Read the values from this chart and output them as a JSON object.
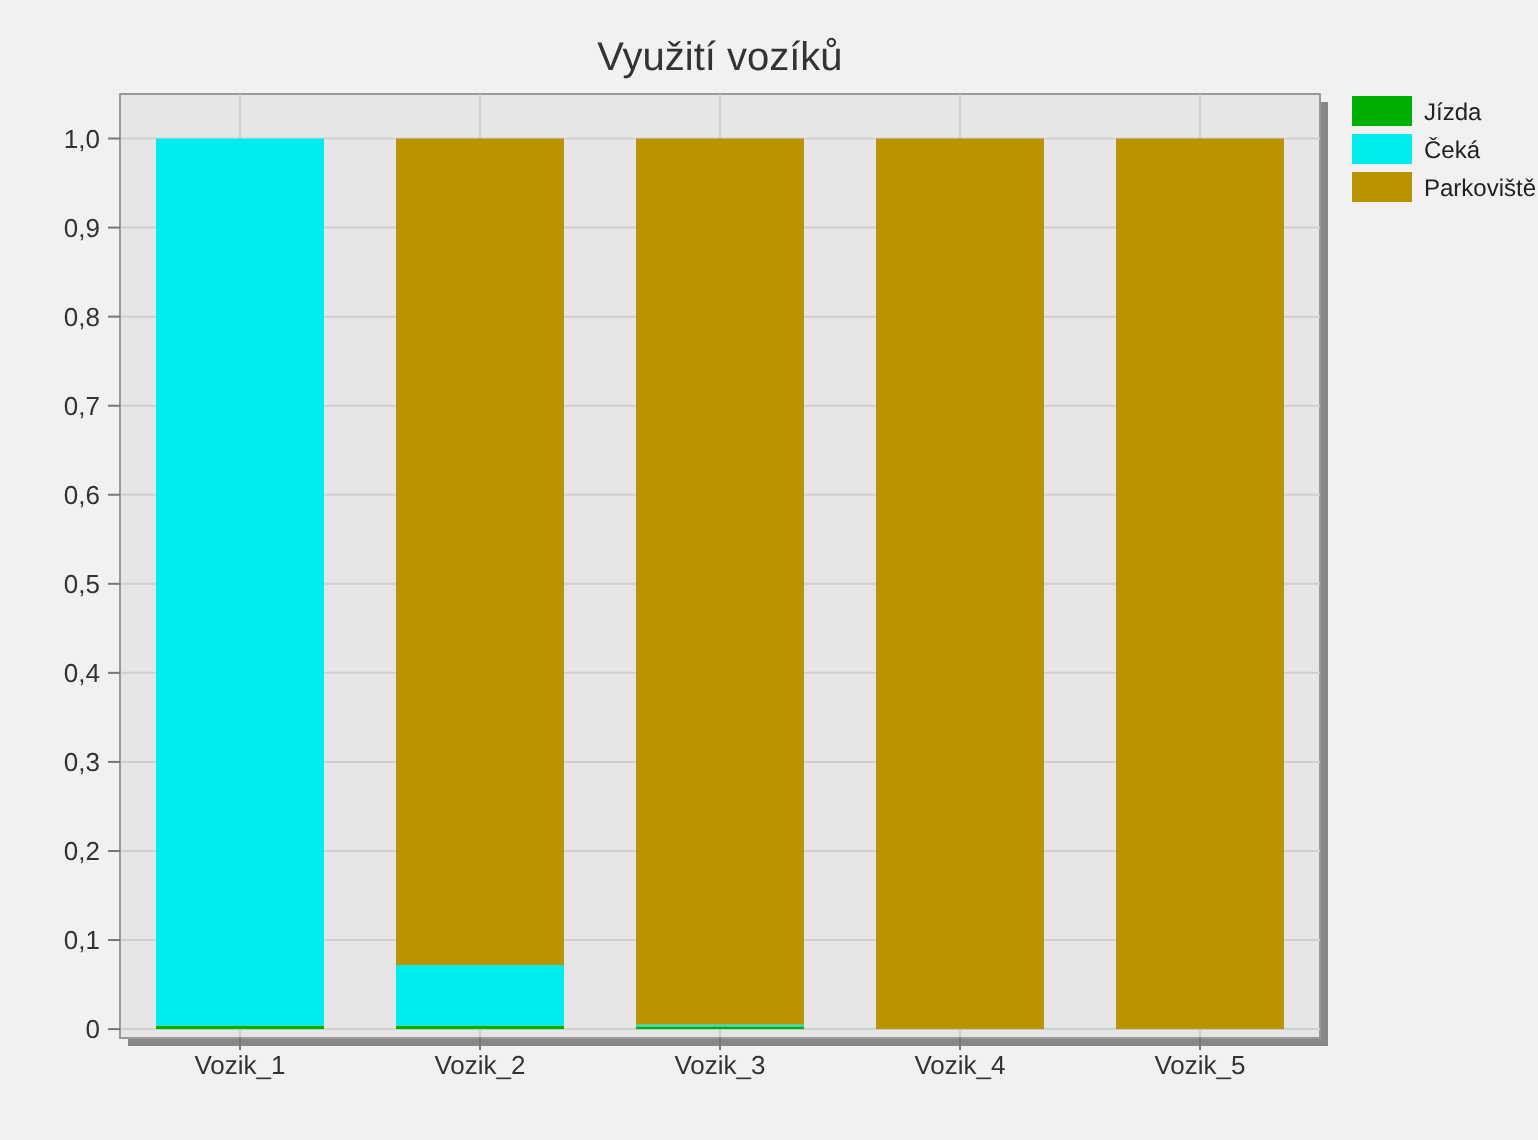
{
  "chart_data": {
    "type": "bar",
    "title": "Využití vozíků",
    "categories": [
      "Vozik_1",
      "Vozik_2",
      "Vozik_3",
      "Vozik_4",
      "Vozik_5"
    ],
    "stacked": true,
    "series": [
      {
        "name": "Jízda",
        "color": "#00b000",
        "values": [
          0.004,
          0.004,
          0.003,
          0,
          0
        ]
      },
      {
        "name": "Čeká",
        "color": "#00eded",
        "values": [
          0.996,
          0.068,
          0.002,
          0,
          0
        ]
      },
      {
        "name": "Parkoviště",
        "color": "#b99400",
        "values": [
          0,
          0.928,
          0.995,
          1,
          1
        ]
      }
    ],
    "ylim": [
      -0.01,
      1.05
    ],
    "yticks": [
      0,
      {
        "value": 0.1,
        "label": "0,1"
      },
      {
        "value": 0.2,
        "label": "0,2"
      },
      {
        "value": 0.3,
        "label": "0,3"
      },
      {
        "value": 0.4,
        "label": "0,4"
      },
      {
        "value": 0.5,
        "label": "0,5"
      },
      {
        "value": 0.6,
        "label": "0,6"
      },
      {
        "value": 0.7,
        "label": "0,7"
      },
      {
        "value": 0.8,
        "label": "0,8"
      },
      {
        "value": 0.9,
        "label": "0,9"
      },
      {
        "value": 1,
        "label": "1,0"
      }
    ],
    "grid": true,
    "legend": "top right"
  }
}
